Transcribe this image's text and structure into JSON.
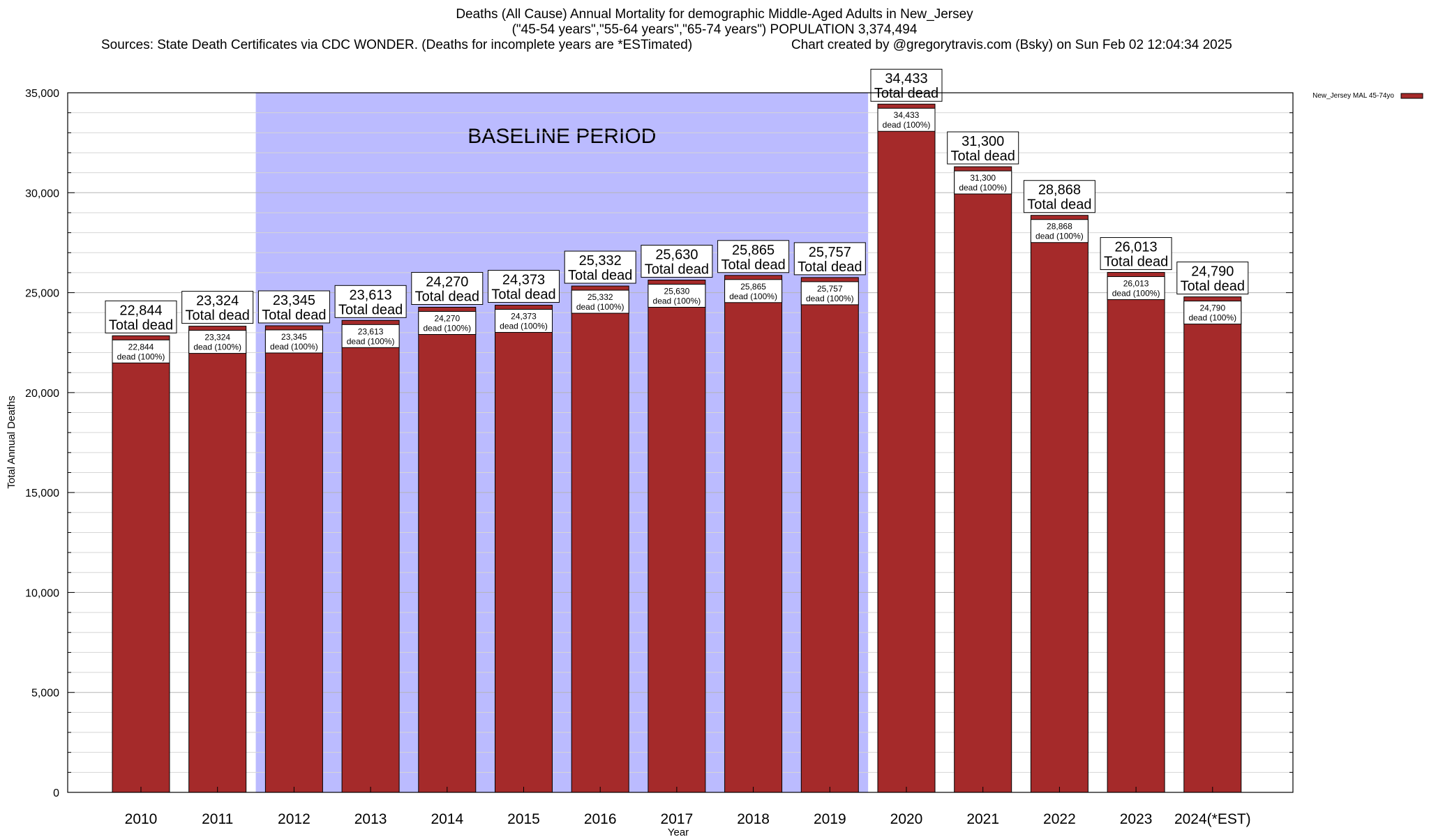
{
  "header": {
    "title": "Deaths (All Cause) Annual Mortality for demographic Middle-Aged Adults in New_Jersey",
    "subtitle": "(\"45-54 years\",\"55-64 years\",\"65-74 years\") POPULATION 3,374,494",
    "sources": "Sources: State Death Certificates via CDC WONDER. (Deaths for incomplete years are *ESTimated)",
    "credit": "Chart created by @gregorytravis.com (Bsky) on Sun Feb 02 12:04:34 2025"
  },
  "chart_data": {
    "type": "bar",
    "xlabel": "Year",
    "ylabel": "Total Annual Deaths",
    "ylim": [
      0,
      35000
    ],
    "yticks": [
      0,
      5000,
      10000,
      15000,
      20000,
      25000,
      30000,
      35000
    ],
    "ytick_labels": [
      "0",
      "5,000",
      "10,000",
      "15,000",
      "20,000",
      "25,000",
      "30,000",
      "35,000"
    ],
    "grid": true,
    "legend_position": "top-right",
    "categories": [
      "2010",
      "2011",
      "2012",
      "2013",
      "2014",
      "2015",
      "2016",
      "2017",
      "2018",
      "2019",
      "2020",
      "2021",
      "2022",
      "2023",
      "2024(*EST)"
    ],
    "series": [
      {
        "name": "New_Jersey MAL 45-74yo",
        "color": "#a52a2a",
        "values": [
          22844,
          23324,
          23345,
          23613,
          24270,
          24373,
          25332,
          25630,
          25865,
          25757,
          34433,
          31300,
          28868,
          26013,
          24790
        ]
      }
    ],
    "value_labels": [
      "22,844",
      "23,324",
      "23,345",
      "23,613",
      "24,270",
      "24,373",
      "25,332",
      "25,630",
      "25,865",
      "25,757",
      "34,433",
      "31,300",
      "28,868",
      "26,013",
      "24,790"
    ],
    "top_label_suffix": "Total dead",
    "inner_label_suffix": "dead (100%)",
    "baseline_period": {
      "label": "BASELINE PERIOD",
      "start": "2012",
      "end": "2019",
      "color": "#bbbbff"
    }
  }
}
